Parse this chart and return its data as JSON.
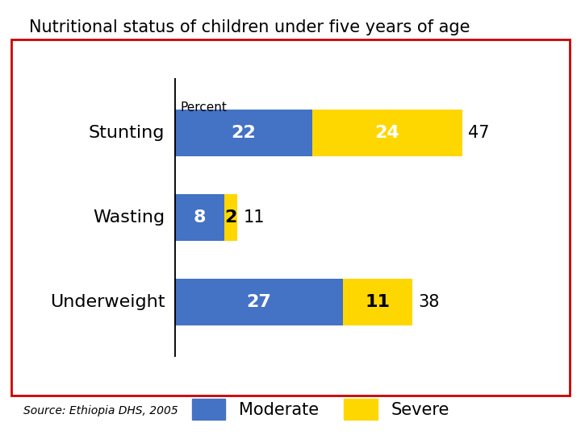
{
  "title": "Nutritional status of children under five years of age",
  "categories": [
    "Stunting",
    "Wasting",
    "Underweight"
  ],
  "moderate": [
    22,
    8,
    27
  ],
  "severe": [
    24,
    2,
    11
  ],
  "total": [
    47,
    11,
    38
  ],
  "moderate_color": "#4472C4",
  "severe_color": "#FFD700",
  "bar_height": 0.55,
  "title_fontsize": 15,
  "label_fontsize": 16,
  "bar_label_fontsize": 16,
  "total_label_fontsize": 15,
  "legend_fontsize": 15,
  "source_text": "Source: Ethiopia DHS, 2005",
  "percent_label": "Percent",
  "background_color": "#ffffff",
  "border_color": "#cc0000",
  "severe_text_colors": [
    "white",
    "black",
    "black"
  ]
}
